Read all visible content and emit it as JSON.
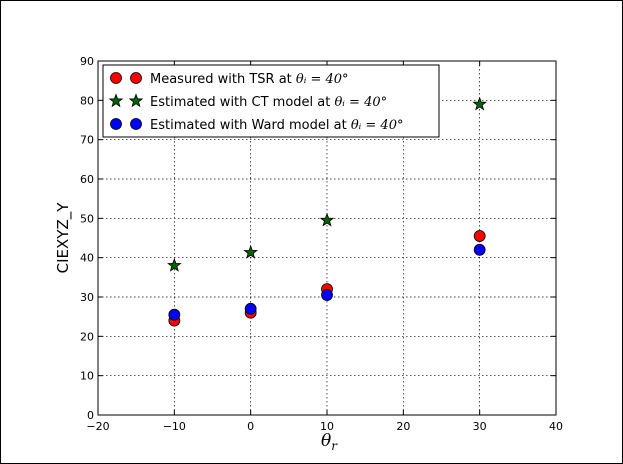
{
  "chart_data": {
    "type": "scatter",
    "title": "",
    "xlabel": "θ_r",
    "ylabel": "CIEXYZ_Y",
    "xlim": [
      -20,
      40
    ],
    "ylim": [
      0,
      90
    ],
    "xticks": [
      -20,
      -10,
      0,
      10,
      20,
      30,
      40
    ],
    "yticks": [
      0,
      10,
      20,
      30,
      40,
      50,
      60,
      70,
      80,
      90
    ],
    "xtick_labels": [
      "−20",
      "−10",
      "0",
      "10",
      "20",
      "30",
      "40"
    ],
    "ytick_labels": [
      "0",
      "10",
      "20",
      "30",
      "40",
      "50",
      "60",
      "70",
      "80",
      "90"
    ],
    "grid": true,
    "legend_position": "top-left",
    "series": [
      {
        "name": "Measured with TSR at θ_i = 40°",
        "label_text": "Measured with TSR at ",
        "label_math": "θᵢ = 40°",
        "marker": "circle",
        "color": "#ff0000",
        "x": [
          -10,
          0,
          10,
          30
        ],
        "y": [
          24.0,
          26.0,
          32.0,
          45.5
        ]
      },
      {
        "name": "Estimated with CT model at θ_i = 40°",
        "label_text": "Estimated with CT model at ",
        "label_math": "θᵢ = 40°",
        "marker": "star",
        "color": "#006400",
        "x": [
          -10,
          0,
          10,
          30
        ],
        "y": [
          38.0,
          41.3,
          49.5,
          79.0
        ]
      },
      {
        "name": "Estimated with Ward model at θ_i = 40°",
        "label_text": "Estimated with Ward model at ",
        "label_math": "θᵢ = 40°",
        "marker": "circle",
        "color": "#0000ff",
        "x": [
          -10,
          0,
          10,
          30
        ],
        "y": [
          25.5,
          27.0,
          30.5,
          42.0
        ]
      }
    ]
  }
}
